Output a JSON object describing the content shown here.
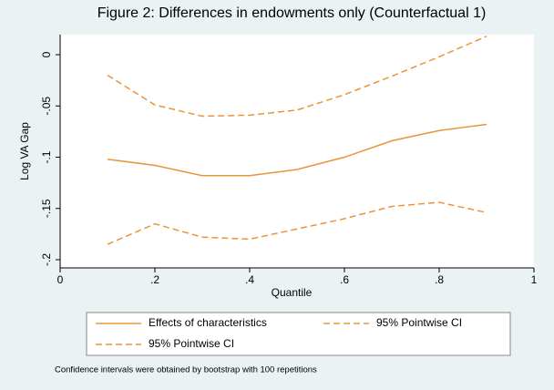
{
  "chart_data": {
    "type": "line",
    "title": "Figure 2: Differences in endowments only (Counterfactual 1)",
    "x_label": "Quantile",
    "y_label": "Log VA Gap",
    "x": [
      0.1,
      0.2,
      0.3,
      0.4,
      0.5,
      0.6,
      0.7,
      0.8,
      0.9
    ],
    "series": [
      {
        "name": "Effects of characteristics",
        "color": "#e8953a",
        "dash": false,
        "values": [
          -0.102,
          -0.108,
          -0.118,
          -0.118,
          -0.112,
          -0.1,
          -0.084,
          -0.074,
          -0.068
        ]
      },
      {
        "name": "95% Pointwise CI",
        "color": "#e8953a",
        "dash": true,
        "values": [
          -0.02,
          -0.049,
          -0.06,
          -0.059,
          -0.054,
          -0.039,
          -0.021,
          -0.002,
          0.018
        ]
      },
      {
        "name": "95% Pointwise CI",
        "color": "#e8953a",
        "dash": true,
        "values": [
          -0.185,
          -0.165,
          -0.178,
          -0.18,
          -0.17,
          -0.16,
          -0.148,
          -0.144,
          -0.154
        ]
      }
    ],
    "xlim": [
      0,
      1
    ],
    "xticks": [
      0,
      {
        "value": 0.2,
        "label": ".2"
      },
      {
        "value": 0.4,
        "label": ".4"
      },
      {
        "value": 0.6,
        "label": ".6"
      },
      {
        "value": 0.8,
        "label": ".8"
      },
      1
    ],
    "ylim": [
      -0.208,
      0.0196
    ],
    "yticks": [
      0,
      {
        "value": -0.05,
        "label": "-.05"
      },
      {
        "value": -0.1,
        "label": "-.1"
      },
      {
        "value": -0.15,
        "label": "-.15"
      },
      {
        "value": -0.2,
        "label": "-.2"
      }
    ],
    "grid": false,
    "note": "Confidence intervals were obtained by bootstrap with 100 repetitions"
  }
}
